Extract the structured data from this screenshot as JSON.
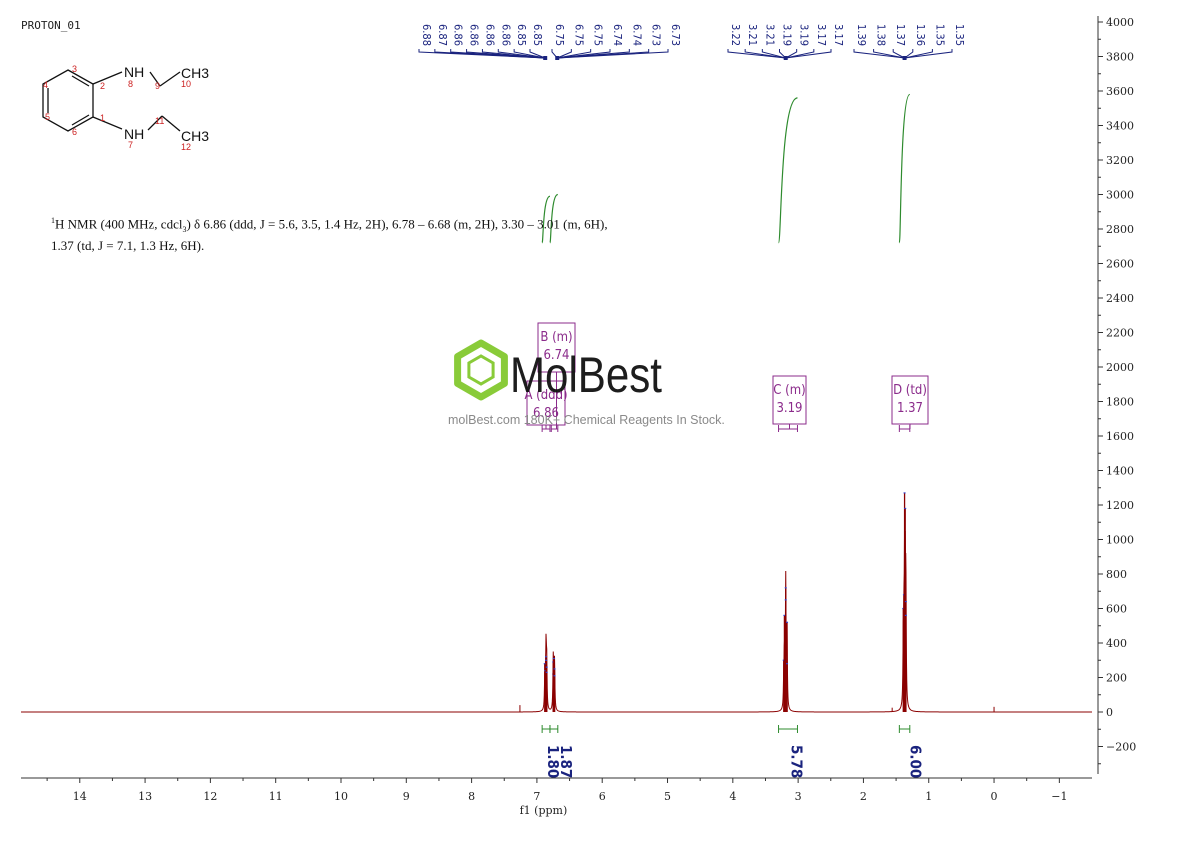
{
  "page": {
    "title": "PROTON_01",
    "nmr_description_prefix": "H NMR (400 MHz, cdcl",
    "nmr_description_rest": ") δ 6.86 (ddd, J = 5.6, 3.5, 1.4 Hz, 2H), 6.78 – 6.68 (m, 2H), 3.30 – 3.01 (m, 6H), 1.37 (td, J = 7.1, 1.3 Hz, 6H).",
    "watermark": {
      "brand": "MolBest",
      "tagline": "molBest.com 180K+ Chemical Reagents In Stock."
    },
    "colors": {
      "spectrum": "#8b0000",
      "integral": "#2e8b2e",
      "peak_label": "#1a237e",
      "multiplet": "#8b2b8b",
      "axis": "#333333"
    }
  },
  "molecule": {
    "labels": [
      "NH",
      "CH3",
      "NH",
      "CH3"
    ],
    "atom_numbers": [
      "1",
      "2",
      "3",
      "4",
      "5",
      "6",
      "7",
      "8",
      "9",
      "10",
      "11",
      "12"
    ]
  },
  "chart_data": {
    "type": "line",
    "title": "PROTON_01",
    "xlabel": "f1 (ppm)",
    "ylabel": "",
    "xlim": [
      14.9,
      -1.5
    ],
    "ylim": [
      -400,
      4000
    ],
    "x_ticks": [
      14,
      13,
      12,
      11,
      10,
      9,
      8,
      7,
      6,
      5,
      4,
      3,
      2,
      1,
      0,
      -1
    ],
    "y_ticks": [
      -200,
      0,
      200,
      400,
      600,
      800,
      1000,
      1200,
      1400,
      1600,
      1800,
      2000,
      2200,
      2400,
      2600,
      2800,
      3000,
      3200,
      3400,
      3600,
      3800,
      4000
    ],
    "peaks": [
      {
        "ppm": 6.88,
        "height": 280
      },
      {
        "ppm": 6.87,
        "height": 240
      },
      {
        "ppm": 6.86,
        "height": 320
      },
      {
        "ppm": 6.86,
        "height": 300
      },
      {
        "ppm": 6.85,
        "height": 260
      },
      {
        "ppm": 6.85,
        "height": 230
      },
      {
        "ppm": 6.75,
        "height": 220
      },
      {
        "ppm": 6.75,
        "height": 290
      },
      {
        "ppm": 6.74,
        "height": 310
      },
      {
        "ppm": 6.73,
        "height": 250
      },
      {
        "ppm": 6.73,
        "height": 210
      },
      {
        "ppm": 3.22,
        "height": 300
      },
      {
        "ppm": 3.21,
        "height": 560
      },
      {
        "ppm": 3.19,
        "height": 720
      },
      {
        "ppm": 3.19,
        "height": 650
      },
      {
        "ppm": 3.17,
        "height": 520
      },
      {
        "ppm": 3.17,
        "height": 280
      },
      {
        "ppm": 1.39,
        "height": 600
      },
      {
        "ppm": 1.38,
        "height": 680
      },
      {
        "ppm": 1.37,
        "height": 1270
      },
      {
        "ppm": 1.36,
        "height": 1180
      },
      {
        "ppm": 1.35,
        "height": 640
      },
      {
        "ppm": 1.35,
        "height": 560
      }
    ],
    "peak_label_groups": [
      {
        "labels": [
          "6.88",
          "6.87",
          "6.86",
          "6.86",
          "6.86",
          "6.86",
          "6.85",
          "6.85"
        ],
        "anchor_ppm": 6.85
      },
      {
        "labels": [
          "6.75",
          "6.75",
          "6.75",
          "6.74",
          "6.74",
          "6.73",
          "6.73"
        ],
        "anchor_ppm": 6.75
      },
      {
        "labels": [
          "3.22",
          "3.21",
          "3.21",
          "3.19",
          "3.19",
          "3.17",
          "3.17"
        ],
        "anchor_ppm": 3.19
      },
      {
        "labels": [
          "1.39",
          "1.38",
          "1.37",
          "1.36",
          "1.35",
          "1.35"
        ],
        "anchor_ppm": 1.37
      }
    ],
    "integrals": [
      {
        "from": 6.92,
        "to": 6.8,
        "value": "1.80",
        "y_start": 2720,
        "y_end": 2990
      },
      {
        "from": 6.8,
        "to": 6.68,
        "value": "1.87",
        "y_start": 2720,
        "y_end": 3000
      },
      {
        "from": 3.3,
        "to": 3.01,
        "value": "5.78",
        "y_start": 2720,
        "y_end": 3560
      },
      {
        "from": 1.45,
        "to": 1.29,
        "value": "6.00",
        "y_start": 2720,
        "y_end": 3580
      }
    ],
    "multiplets": [
      {
        "id": "A",
        "type": "ddd",
        "shift": "6.86",
        "from": 6.92,
        "to": 6.8
      },
      {
        "id": "B",
        "type": "m",
        "shift": "6.74",
        "from": 6.78,
        "to": 6.68
      },
      {
        "id": "C",
        "type": "m",
        "shift": "3.19",
        "from": 3.3,
        "to": 3.01
      },
      {
        "id": "D",
        "type": "td",
        "shift": "1.37",
        "from": 1.45,
        "to": 1.29
      }
    ]
  }
}
